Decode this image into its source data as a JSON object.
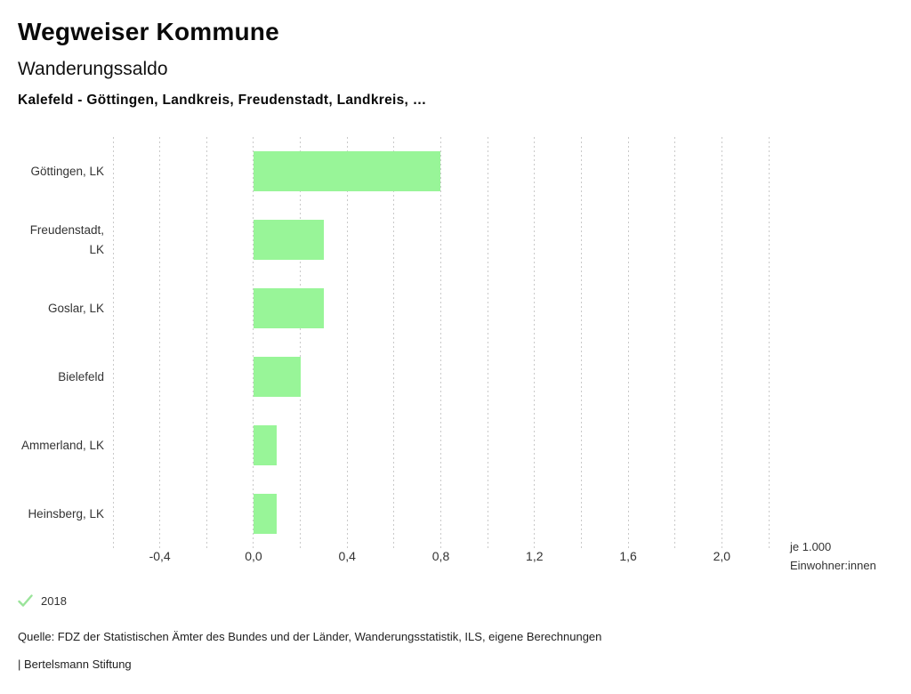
{
  "header": {
    "app_title": "Wegweiser Kommune",
    "chart_title": "Wanderungssaldo",
    "subtitle": "Kalefeld - Göttingen, Landkreis, Freudenstadt, Landkreis, …"
  },
  "chart_data": {
    "type": "bar",
    "orientation": "horizontal",
    "title": "Wanderungssaldo",
    "categories": [
      "Göttingen, LK",
      "Freudenstadt, LK",
      "Goslar, LK",
      "Bielefeld",
      "Ammerland, LK",
      "Heinsberg, LK"
    ],
    "series": [
      {
        "name": "2018",
        "values": [
          0.8,
          0.3,
          0.3,
          0.2,
          0.1,
          0.1
        ]
      }
    ],
    "xlabel": "je 1.000 Einwohner:innen",
    "ylabel": "",
    "xlim": [
      -0.6,
      2.2
    ],
    "grid": true,
    "grid_step": 0.2,
    "tick_values": [
      -0.4,
      0,
      0.4,
      0.8,
      1.2,
      1.6,
      2
    ],
    "tick_labels": [
      "-0,4",
      "0,0",
      "0,4",
      "0,8",
      "1,2",
      "1,6",
      "2,0"
    ],
    "legend_position": "bottom-left",
    "bar_color": "#98f598",
    "grid_color": "#c9c9c9"
  },
  "axis_unit_label": {
    "line1": "je 1.000",
    "line2": "Einwohner:innen"
  },
  "legend": {
    "check_icon": "check-icon",
    "year_label": "2018",
    "check_color": "#9ae49a"
  },
  "footer": {
    "source_line": "Quelle: FDZ der Statistischen Ämter des Bundes und der Länder, Wanderungsstatistik, ILS, eigene Berechnungen",
    "attribution_line": "| Bertelsmann Stiftung"
  }
}
